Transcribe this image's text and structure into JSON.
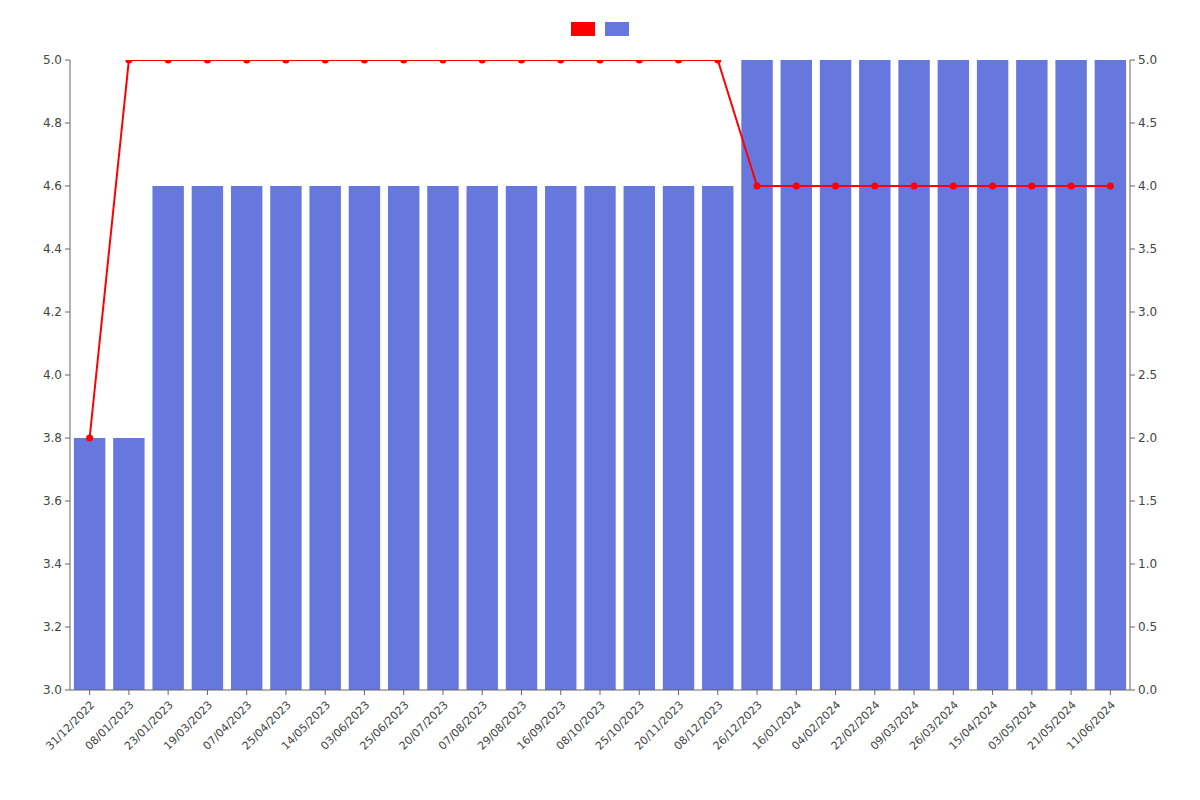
{
  "chart_data": {
    "type": "bar",
    "categories": [
      "31/12/2022",
      "08/01/2023",
      "23/01/2023",
      "19/03/2023",
      "07/04/2023",
      "25/04/2023",
      "14/05/2023",
      "03/06/2023",
      "25/06/2023",
      "20/07/2023",
      "07/08/2023",
      "29/08/2023",
      "16/09/2023",
      "08/10/2023",
      "25/10/2023",
      "20/11/2023",
      "08/12/2023",
      "26/12/2023",
      "16/01/2024",
      "04/02/2024",
      "22/02/2024",
      "09/03/2024",
      "26/03/2024",
      "15/04/2024",
      "03/05/2024",
      "21/05/2024",
      "11/06/2024"
    ],
    "series": [
      {
        "type": "bar",
        "color": "#6677dd",
        "values": [
          3.8,
          3.8,
          4.6,
          4.6,
          4.6,
          4.6,
          4.6,
          4.6,
          4.6,
          4.6,
          4.6,
          4.6,
          4.6,
          4.6,
          4.6,
          4.6,
          4.6,
          5.0,
          5.0,
          5.0,
          5.0,
          5.0,
          5.0,
          5.0,
          5.0,
          5.0,
          5.0
        ]
      },
      {
        "type": "line",
        "color": "#ff0000",
        "marker": "circle",
        "values": [
          3.8,
          5.0,
          5.0,
          5.0,
          5.0,
          5.0,
          5.0,
          5.0,
          5.0,
          5.0,
          5.0,
          5.0,
          5.0,
          5.0,
          5.0,
          5.0,
          5.0,
          4.6,
          4.6,
          4.6,
          4.6,
          4.6,
          4.6,
          4.6,
          4.6,
          4.6,
          4.6
        ]
      }
    ],
    "ylim": [
      3.0,
      5.0
    ],
    "yticks": [
      {
        "value": 3.0,
        "label": "3.0"
      },
      3.2,
      3.4,
      3.6,
      3.8,
      {
        "value": 4.0,
        "label": "4.0"
      },
      4.2,
      4.4,
      4.6,
      4.8,
      {
        "value": 5.0,
        "label": "5.0"
      }
    ],
    "y2lim": [
      0.0,
      5.0
    ],
    "y2ticks": [
      {
        "value": 0.0,
        "label": "0.0"
      },
      0.5,
      {
        "value": 1.0,
        "label": "1.0"
      },
      1.5,
      {
        "value": 2.0,
        "label": "2.0"
      },
      2.5,
      {
        "value": 3.0,
        "label": "3.0"
      },
      3.5,
      {
        "value": 4.0,
        "label": "4.0"
      },
      4.5,
      {
        "value": 5.0,
        "label": "5.0"
      }
    ],
    "grid": false,
    "legend": "top"
  }
}
